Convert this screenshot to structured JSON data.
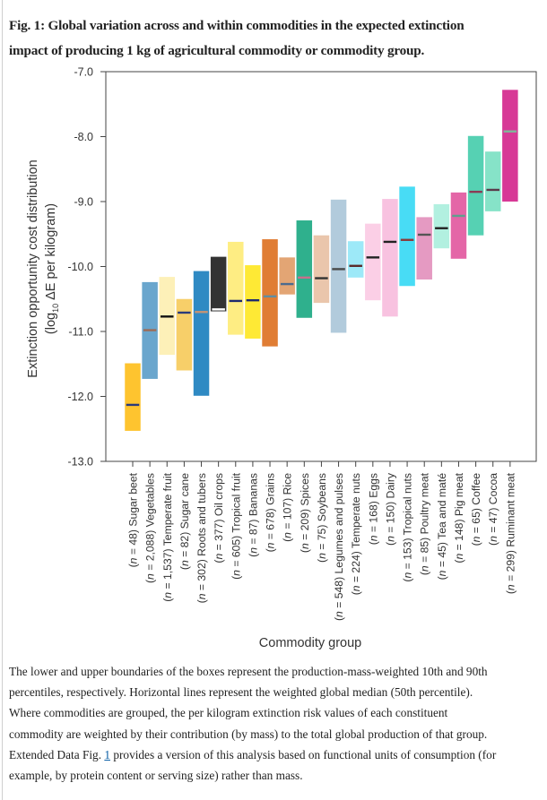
{
  "figure": {
    "title_line1": "Fig. 1: Global variation across and within commodities in the expected extinction",
    "title_line2": "impact of producing 1  kg of agricultural commodity or commodity group."
  },
  "caption": {
    "lines": [
      "The lower and upper boundaries of the boxes represent the production-mass-weighted 10th and 90th",
      "percentiles, respectively. Horizontal lines represent the weighted global median (50th percentile).",
      "Where commodities are grouped, the per kilogram extinction risk values of each constituent",
      "commodity are weighted by their contribution (by mass) to the total global production of that group."
    ],
    "line5_prefix": "Extended Data Fig. ",
    "line5_link": "1",
    "line5_suffix": " provides a version of this analysis based on functional units of consumption (for",
    "line6": "example, by protein content or serving size) rather than mass."
  },
  "chart_data": {
    "type": "box",
    "title": "",
    "xlabel": "Commodity group",
    "ylabel_line1": "Extinction opportunity cost distribution",
    "ylabel_line2_pre": "(log",
    "ylabel_line2_sub": "10",
    "ylabel_line2_post": " ΔE per kilogram)",
    "ylim": [
      -13.0,
      -7.0
    ],
    "yticks": [
      -7.0,
      -8.0,
      -9.0,
      -10.0,
      -11.0,
      -12.0,
      -13.0
    ],
    "ytick_labels": [
      "-7.0",
      "-8.0",
      "-9.0",
      "-10.0",
      "-11.0",
      "-12.0",
      "-13.0"
    ],
    "grid": false,
    "series": [
      {
        "name": "Sugar beet",
        "n": "48",
        "p10": -12.53,
        "p50": -12.13,
        "p90": -11.49,
        "color": "#fec42f",
        "median_color": "#2b3a7a"
      },
      {
        "name": "Vegetables",
        "n": "2,088",
        "p10": -11.73,
        "p50": -10.98,
        "p90": -10.24,
        "color": "#6aa6cd",
        "median_color": "#9c6b57"
      },
      {
        "name": "Temperate fruit",
        "n": "1,537",
        "p10": -11.36,
        "p50": -10.77,
        "p90": -10.16,
        "color": "#fdf0b8",
        "median_color": "#111111"
      },
      {
        "name": "Sugar cane",
        "n": "82",
        "p10": -11.6,
        "p50": -10.71,
        "p90": -10.5,
        "color": "#f7cf69",
        "median_color": "#2b3a7a"
      },
      {
        "name": "Roots and tubers",
        "n": "302",
        "p10": -11.99,
        "p50": -10.7,
        "p90": -10.07,
        "color": "#2f8ac3",
        "median_color": "#c49374"
      },
      {
        "name": "Oil crops",
        "n": "377",
        "p10": -10.69,
        "p50": -10.66,
        "p90": -9.85,
        "color": "#333333",
        "median_color": "#ffffff"
      },
      {
        "name": "Tropical fruit",
        "n": "605",
        "p10": -11.05,
        "p50": -10.53,
        "p90": -9.62,
        "color": "#feed83",
        "median_color": "#1e2a6e"
      },
      {
        "name": "Bananas",
        "n": "87",
        "p10": -11.11,
        "p50": -10.52,
        "p90": -9.98,
        "color": "#fee935",
        "median_color": "#1e2a6e"
      },
      {
        "name": "Grains",
        "n": "678",
        "p10": -11.23,
        "p50": -10.46,
        "p90": -9.58,
        "color": "#e07d34",
        "median_color": "#5f8ea3"
      },
      {
        "name": "Rice",
        "n": "107",
        "p10": -10.43,
        "p50": -10.27,
        "p90": -9.86,
        "color": "#e3a574",
        "median_color": "#4b6b8f"
      },
      {
        "name": "Spices",
        "n": "209",
        "p10": -10.79,
        "p50": -10.17,
        "p90": -9.29,
        "color": "#2fb08d",
        "median_color": "#c8708c"
      },
      {
        "name": "Soybeans",
        "n": "75",
        "p10": -10.56,
        "p50": -10.18,
        "p90": -9.52,
        "color": "#eac6ac",
        "median_color": "#333333"
      },
      {
        "name": "Legumes and pulses",
        "n": "548",
        "p10": -11.02,
        "p50": -10.04,
        "p90": -8.97,
        "color": "#b2cbdc",
        "median_color": "#4a4a4a"
      },
      {
        "name": "Temperate nuts",
        "n": "224",
        "p10": -10.17,
        "p50": -9.99,
        "p90": -9.61,
        "color": "#9de9f8",
        "median_color": "#5a2a2a"
      },
      {
        "name": "Eggs",
        "n": "168",
        "p10": -10.52,
        "p50": -9.86,
        "p90": -9.34,
        "color": "#fbcfe6",
        "median_color": "#222222"
      },
      {
        "name": "Dairy",
        "n": "150",
        "p10": -10.77,
        "p50": -9.62,
        "p90": -8.96,
        "color": "#f8c2e0",
        "median_color": "#222222"
      },
      {
        "name": "Tropical nuts",
        "n": "153",
        "p10": -10.3,
        "p50": -9.59,
        "p90": -8.77,
        "color": "#48dcf5",
        "median_color": "#8b3a3a"
      },
      {
        "name": "Poultry meat",
        "n": "85",
        "p10": -10.2,
        "p50": -9.51,
        "p90": -9.24,
        "color": "#e59ac2",
        "median_color": "#555555"
      },
      {
        "name": "Tea and maté",
        "n": "45",
        "p10": -9.72,
        "p50": -9.41,
        "p90": -9.04,
        "color": "#b2f0e0",
        "median_color": "#222222"
      },
      {
        "name": "Pig meat",
        "n": "148",
        "p10": -9.88,
        "p50": -9.22,
        "p90": -8.86,
        "color": "#e466a7",
        "median_color": "#5fa08e"
      },
      {
        "name": "Coffee",
        "n": "65",
        "p10": -9.52,
        "p50": -8.85,
        "p90": -7.99,
        "color": "#56d1b3",
        "median_color": "#8b3a55"
      },
      {
        "name": "Cocoa",
        "n": "47",
        "p10": -9.15,
        "p50": -8.82,
        "p90": -8.23,
        "color": "#86e3c8",
        "median_color": "#5a3a4a"
      },
      {
        "name": "Ruminant meat",
        "n": "299",
        "p10": -9.0,
        "p50": -7.92,
        "p90": -7.28,
        "color": "#d73996",
        "median_color": "#7fb89a"
      }
    ]
  }
}
